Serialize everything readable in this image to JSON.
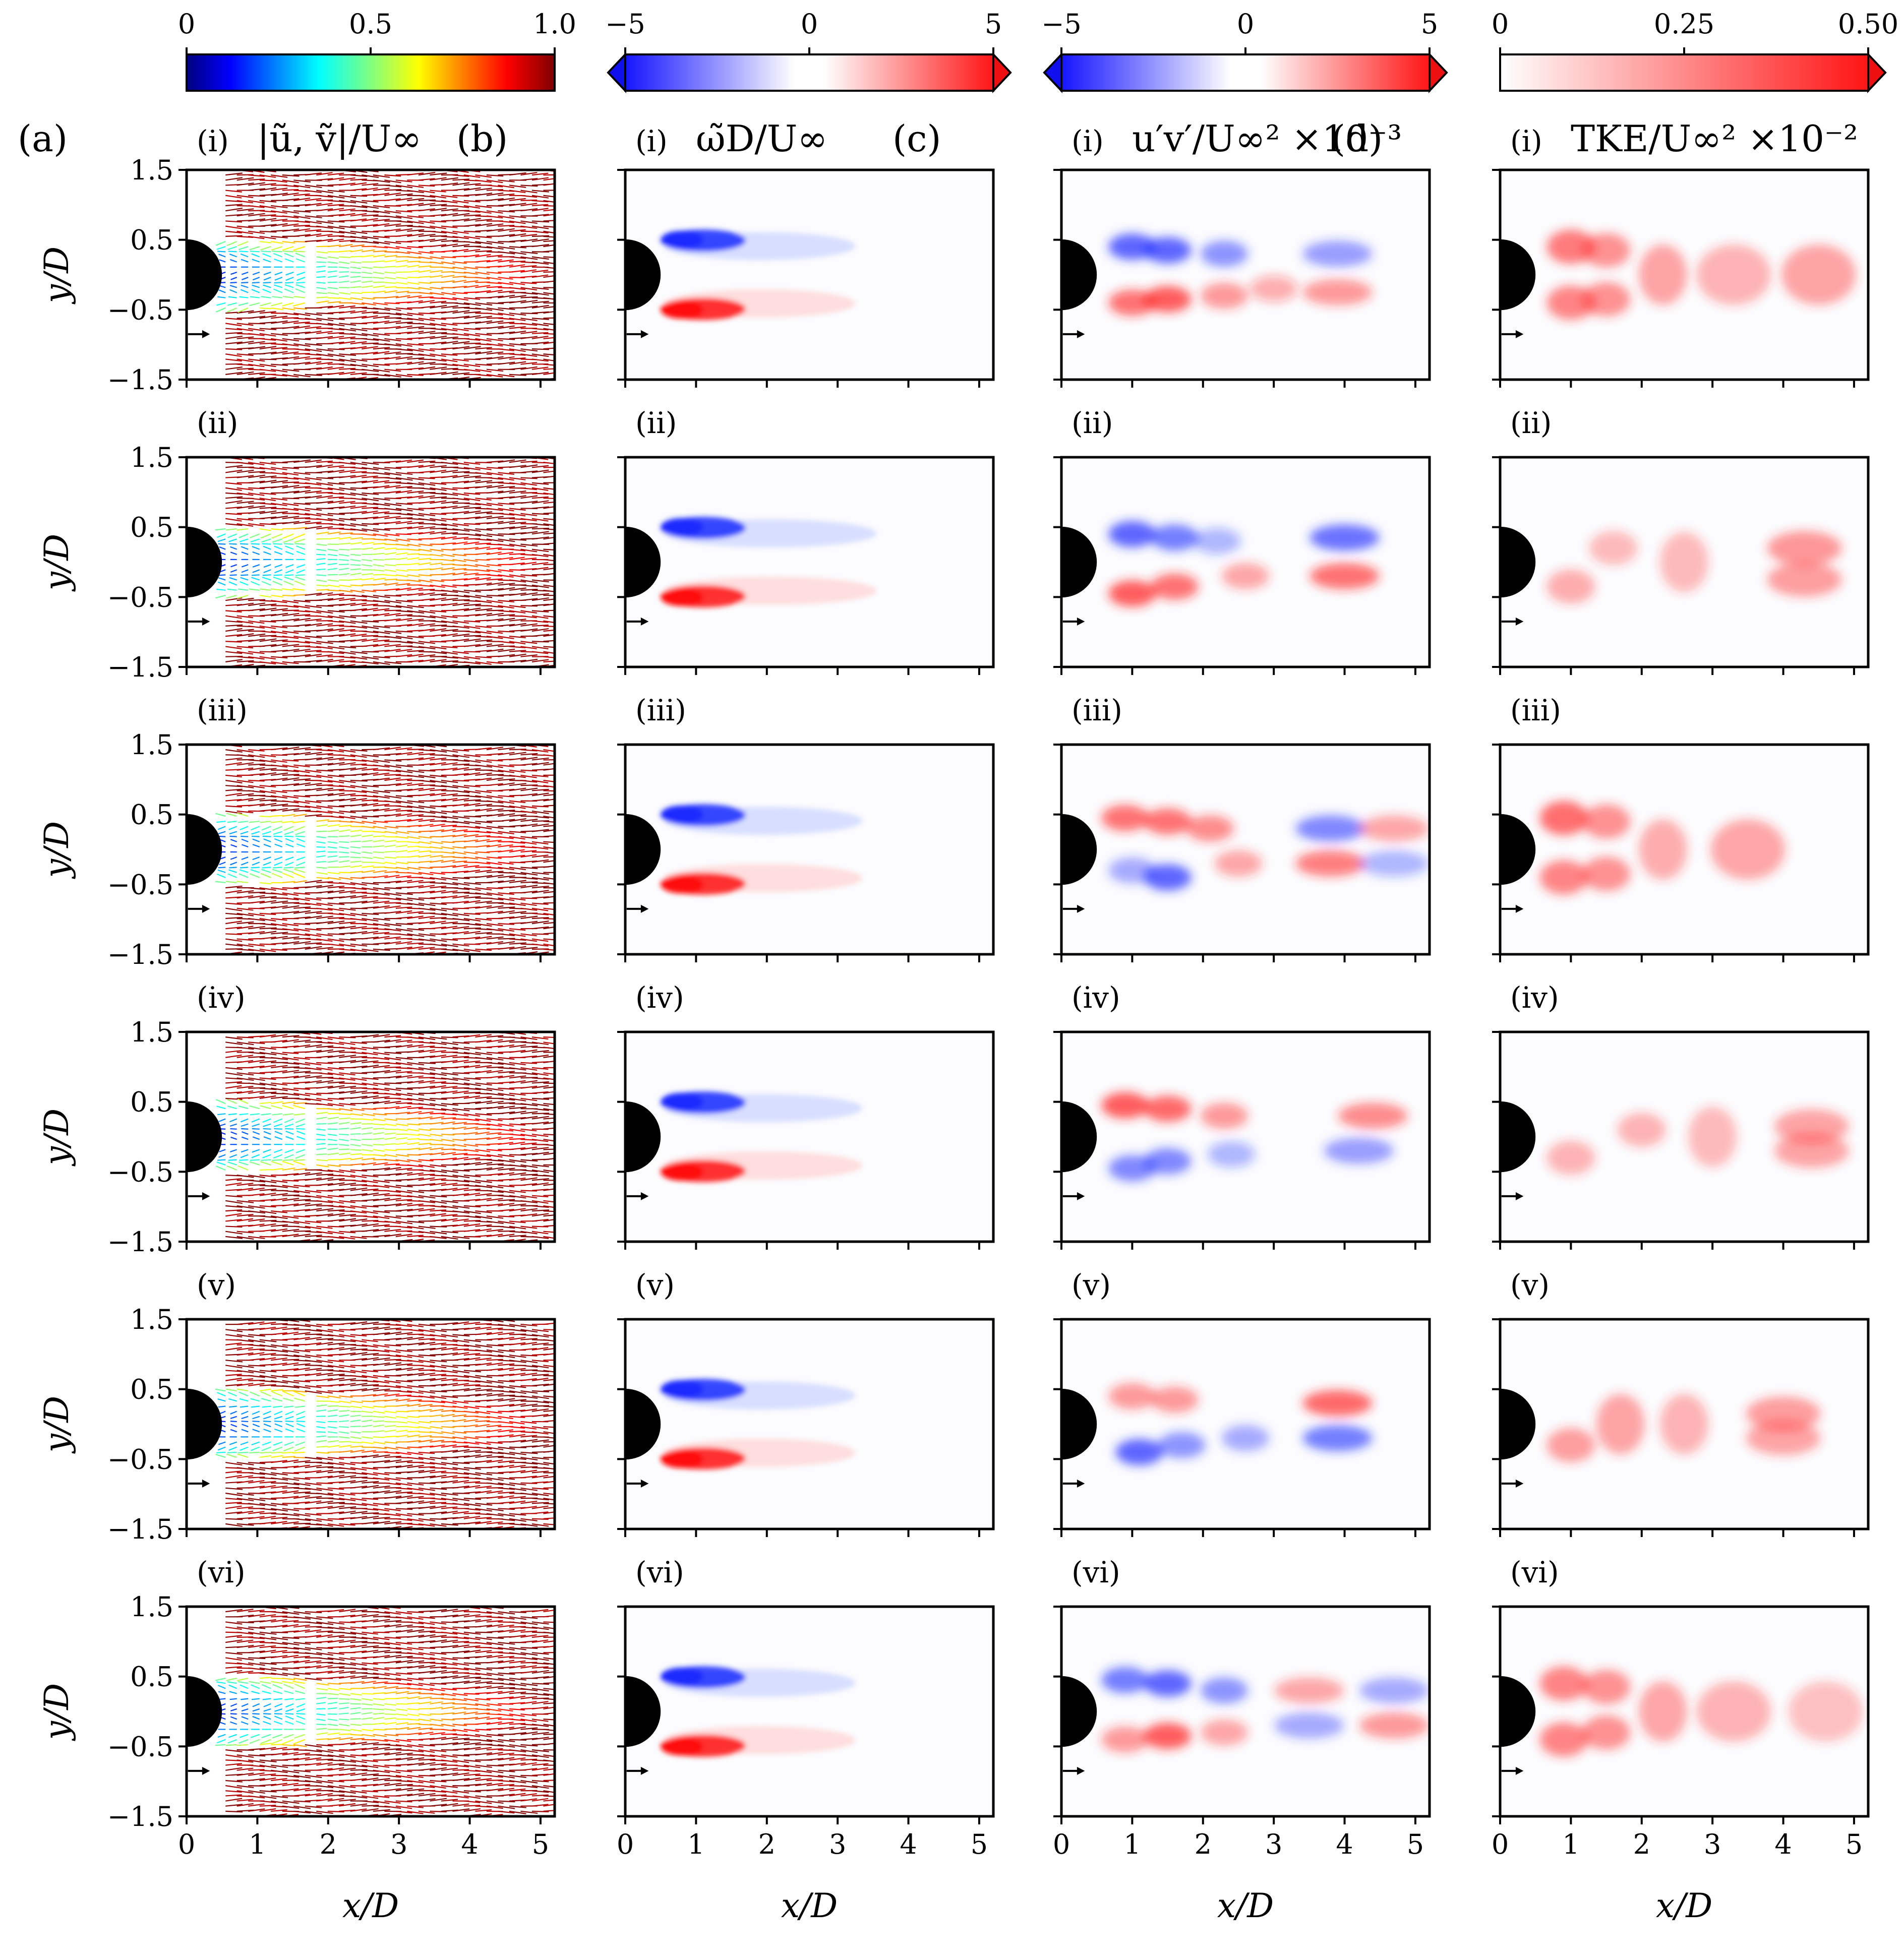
{
  "chart_data": [
    {
      "type": "contour-panel-grid",
      "columns": [
        {
          "letter": "(a)",
          "title": "|ũ, ṽ|/U∞",
          "kind": "velocity-magnitude-quiver",
          "colormap": "jet"
        },
        {
          "letter": "(b)",
          "title": "ω̃D/U∞",
          "kind": "vorticity",
          "colormap": "bwr"
        },
        {
          "letter": "(c)",
          "title": "u′v′/U∞² ×10⁻³",
          "kind": "reynolds-shear-stress",
          "colormap": "bwr"
        },
        {
          "letter": "(d)",
          "title": "TKE/U∞² ×10⁻²",
          "kind": "turbulent-kinetic-energy",
          "colormap": "reds"
        }
      ],
      "rows": [
        "(i)",
        "(ii)",
        "(iii)",
        "(iv)",
        "(v)",
        "(vi)"
      ],
      "colorbars": [
        {
          "column": "(a)",
          "ticks": [
            "0",
            "0.5",
            "1.0"
          ],
          "range": [
            0,
            1.0
          ]
        },
        {
          "column": "(b)",
          "ticks": [
            "−5",
            "0",
            "5"
          ],
          "range": [
            -5,
            5
          ],
          "extend": "both"
        },
        {
          "column": "(c)",
          "ticks": [
            "−5",
            "0",
            "5"
          ],
          "range": [
            -5,
            5
          ],
          "extend": "both"
        },
        {
          "column": "(d)",
          "ticks": [
            "0",
            "0.25",
            "0.50"
          ],
          "range": [
            0,
            0.5
          ],
          "extend": "max"
        }
      ],
      "xlabel": "x/D",
      "ylabel": "y/D",
      "xticks": [
        "0",
        "1",
        "2",
        "3",
        "4",
        "5"
      ],
      "yticks": [
        "1.5",
        "0.5",
        "−0.5",
        "−1.5"
      ],
      "xlim": [
        0,
        5.2
      ],
      "ylim": [
        -1.5,
        1.5
      ],
      "cylinder": {
        "center_x": 0,
        "center_y": 0,
        "diameter": 1
      },
      "vorticity_layers": {
        "x_start": 0.55,
        "lengths": [
          2.7,
          3.0,
          2.8,
          2.8,
          2.7,
          2.7
        ]
      },
      "stress_blobs": [
        [
          {
            "x": 1.0,
            "y": 0.4,
            "v": -1
          },
          {
            "x": 1.5,
            "y": 0.35,
            "v": -1
          },
          {
            "x": 2.3,
            "y": 0.3,
            "v": -0.6
          },
          {
            "x": 3.9,
            "y": 0.3,
            "v": -0.5
          },
          {
            "x": 1.0,
            "y": -0.4,
            "v": 0.8
          },
          {
            "x": 1.5,
            "y": -0.35,
            "v": 1
          },
          {
            "x": 2.3,
            "y": -0.3,
            "v": 0.5
          },
          {
            "x": 3.0,
            "y": -0.2,
            "v": 0.3
          },
          {
            "x": 3.9,
            "y": -0.25,
            "v": 0.5
          }
        ],
        [
          {
            "x": 1.0,
            "y": 0.4,
            "v": -1
          },
          {
            "x": 1.6,
            "y": 0.35,
            "v": -0.8
          },
          {
            "x": 2.2,
            "y": 0.3,
            "v": -0.3
          },
          {
            "x": 4.0,
            "y": 0.35,
            "v": -0.9
          },
          {
            "x": 1.0,
            "y": -0.45,
            "v": 1
          },
          {
            "x": 1.6,
            "y": -0.35,
            "v": 0.8
          },
          {
            "x": 2.6,
            "y": -0.2,
            "v": 0.4
          },
          {
            "x": 4.0,
            "y": -0.2,
            "v": 0.8
          }
        ],
        [
          {
            "x": 0.9,
            "y": 0.45,
            "v": 0.8
          },
          {
            "x": 1.5,
            "y": 0.4,
            "v": 0.8
          },
          {
            "x": 2.1,
            "y": 0.3,
            "v": 0.6
          },
          {
            "x": 3.8,
            "y": 0.3,
            "v": -0.7
          },
          {
            "x": 4.7,
            "y": 0.3,
            "v": 0.4
          },
          {
            "x": 1.0,
            "y": -0.3,
            "v": -0.4
          },
          {
            "x": 1.5,
            "y": -0.4,
            "v": -1
          },
          {
            "x": 2.5,
            "y": -0.2,
            "v": 0.4
          },
          {
            "x": 3.8,
            "y": -0.2,
            "v": 0.7
          },
          {
            "x": 4.7,
            "y": -0.2,
            "v": -0.3
          }
        ],
        [
          {
            "x": 0.9,
            "y": 0.45,
            "v": 1
          },
          {
            "x": 1.5,
            "y": 0.4,
            "v": 0.9
          },
          {
            "x": 2.3,
            "y": 0.3,
            "v": 0.5
          },
          {
            "x": 4.4,
            "y": 0.3,
            "v": 0.6
          },
          {
            "x": 1.0,
            "y": -0.45,
            "v": -0.7
          },
          {
            "x": 1.5,
            "y": -0.35,
            "v": -0.7
          },
          {
            "x": 2.4,
            "y": -0.25,
            "v": -0.3
          },
          {
            "x": 4.2,
            "y": -0.2,
            "v": -0.5
          }
        ],
        [
          {
            "x": 1.0,
            "y": 0.4,
            "v": 0.5
          },
          {
            "x": 1.6,
            "y": 0.35,
            "v": 0.5
          },
          {
            "x": 3.9,
            "y": 0.3,
            "v": 0.9
          },
          {
            "x": 1.1,
            "y": -0.4,
            "v": -1
          },
          {
            "x": 1.7,
            "y": -0.3,
            "v": -0.6
          },
          {
            "x": 2.6,
            "y": -0.2,
            "v": -0.4
          },
          {
            "x": 3.9,
            "y": -0.2,
            "v": -0.8
          }
        ],
        [
          {
            "x": 0.9,
            "y": 0.45,
            "v": -0.8
          },
          {
            "x": 1.5,
            "y": 0.4,
            "v": -1
          },
          {
            "x": 2.3,
            "y": 0.3,
            "v": -0.6
          },
          {
            "x": 3.5,
            "y": 0.3,
            "v": 0.4
          },
          {
            "x": 4.7,
            "y": 0.3,
            "v": -0.4
          },
          {
            "x": 0.9,
            "y": -0.4,
            "v": 0.5
          },
          {
            "x": 1.5,
            "y": -0.35,
            "v": 1
          },
          {
            "x": 2.3,
            "y": -0.3,
            "v": 0.4
          },
          {
            "x": 3.5,
            "y": -0.2,
            "v": -0.4
          },
          {
            "x": 4.7,
            "y": -0.2,
            "v": 0.5
          }
        ]
      ],
      "tke_blobs": [
        [
          {
            "x": 1.0,
            "y": 0.4,
            "v": 0.8
          },
          {
            "x": 1.0,
            "y": -0.4,
            "v": 0.7
          },
          {
            "x": 1.5,
            "y": 0.35,
            "v": 0.6
          },
          {
            "x": 1.5,
            "y": -0.35,
            "v": 0.6
          },
          {
            "x": 2.3,
            "y": 0.0,
            "v": 0.45
          },
          {
            "x": 3.3,
            "y": 0.0,
            "v": 0.3
          },
          {
            "x": 4.5,
            "y": 0.0,
            "v": 0.45
          }
        ],
        [
          {
            "x": 1.0,
            "y": -0.35,
            "v": 0.35
          },
          {
            "x": 1.6,
            "y": 0.2,
            "v": 0.25
          },
          {
            "x": 2.6,
            "y": 0.0,
            "v": 0.25
          },
          {
            "x": 4.3,
            "y": 0.2,
            "v": 0.55
          },
          {
            "x": 4.3,
            "y": -0.25,
            "v": 0.5
          }
        ],
        [
          {
            "x": 0.9,
            "y": 0.45,
            "v": 0.9
          },
          {
            "x": 1.5,
            "y": 0.4,
            "v": 0.6
          },
          {
            "x": 0.9,
            "y": -0.4,
            "v": 0.7
          },
          {
            "x": 1.5,
            "y": -0.35,
            "v": 0.6
          },
          {
            "x": 2.3,
            "y": 0.0,
            "v": 0.35
          },
          {
            "x": 3.5,
            "y": 0.0,
            "v": 0.4
          }
        ],
        [
          {
            "x": 1.0,
            "y": -0.3,
            "v": 0.3
          },
          {
            "x": 2.0,
            "y": 0.1,
            "v": 0.3
          },
          {
            "x": 3.0,
            "y": 0.0,
            "v": 0.25
          },
          {
            "x": 4.4,
            "y": 0.15,
            "v": 0.45
          },
          {
            "x": 4.4,
            "y": -0.2,
            "v": 0.45
          }
        ],
        [
          {
            "x": 1.0,
            "y": -0.3,
            "v": 0.5
          },
          {
            "x": 1.7,
            "y": 0.0,
            "v": 0.45
          },
          {
            "x": 2.6,
            "y": 0.0,
            "v": 0.3
          },
          {
            "x": 4.0,
            "y": 0.15,
            "v": 0.5
          },
          {
            "x": 4.0,
            "y": -0.2,
            "v": 0.45
          }
        ],
        [
          {
            "x": 0.9,
            "y": 0.4,
            "v": 0.7
          },
          {
            "x": 1.5,
            "y": 0.35,
            "v": 0.6
          },
          {
            "x": 0.9,
            "y": -0.4,
            "v": 0.7
          },
          {
            "x": 1.5,
            "y": -0.3,
            "v": 0.6
          },
          {
            "x": 2.3,
            "y": 0.0,
            "v": 0.4
          },
          {
            "x": 3.3,
            "y": 0.0,
            "v": 0.3
          },
          {
            "x": 4.6,
            "y": 0.0,
            "v": 0.2
          }
        ]
      ]
    }
  ]
}
